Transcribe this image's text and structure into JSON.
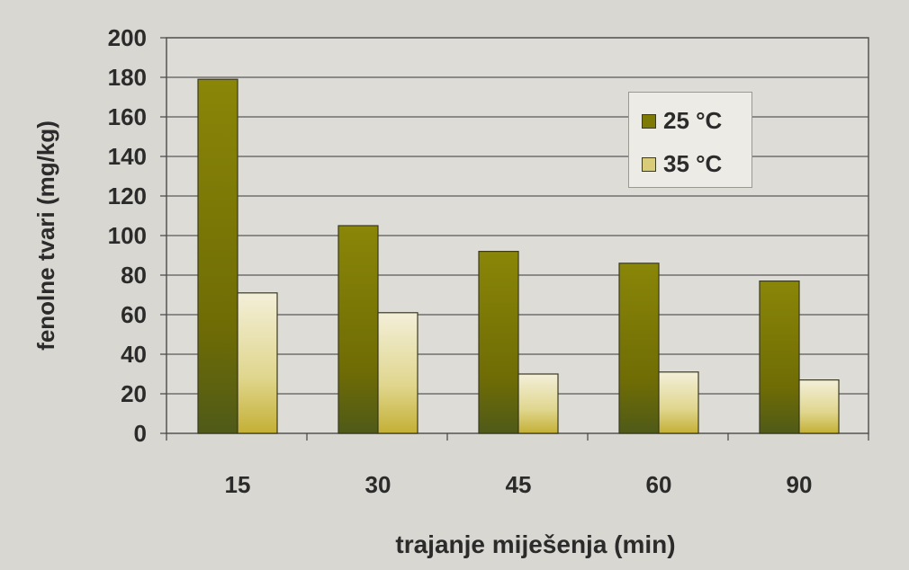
{
  "chart_data": {
    "type": "bar",
    "categories": [
      "15",
      "30",
      "45",
      "60",
      "90"
    ],
    "series": [
      {
        "name": "25 °C",
        "values": [
          179,
          105,
          92,
          86,
          77
        ],
        "color": "#7d7a06"
      },
      {
        "name": "35 °C",
        "values": [
          71,
          61,
          30,
          31,
          27
        ],
        "color": "#d9cc78"
      }
    ],
    "title": "",
    "xlabel": "trajanje miješenja (min)",
    "ylabel": "fenolne tvari (mg/kg)",
    "ylim": [
      0,
      200
    ],
    "yticks": [
      "0",
      "20",
      "40",
      "60",
      "80",
      "100",
      "120",
      "140",
      "160",
      "180",
      "200"
    ],
    "grid": true,
    "legend_position": "top-right"
  }
}
